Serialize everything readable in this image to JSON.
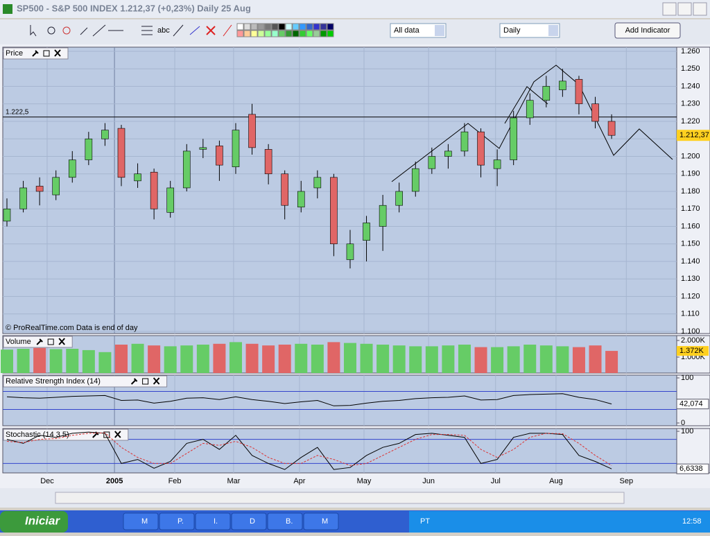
{
  "window": {
    "title": "SP500 - S&P 500 INDEX   1.212,37 (+0,23%)   Daily  25 Aug"
  },
  "toolbar": {
    "text_tool": "abc",
    "range": "All data",
    "period": "Daily",
    "add_indicator": "Add Indicator"
  },
  "footnote": "© ProRealTime.com  Data is end of day",
  "chart_data": [
    {
      "type": "candlestick",
      "title": "Price",
      "last_label": "1.212,37",
      "hline": {
        "value": 1.2225,
        "label": "1.222,5"
      },
      "xticks": [
        {
          "value": 2.46,
          "label": "Dec"
        },
        {
          "value": 6.58,
          "label": "2005"
        },
        {
          "value": 10.27,
          "label": "Feb"
        },
        {
          "value": 13.87,
          "label": "Mar"
        },
        {
          "value": 17.9,
          "label": "Apr"
        },
        {
          "value": 21.85,
          "label": "May"
        },
        {
          "value": 25.8,
          "label": "Jun"
        },
        {
          "value": 29.9,
          "label": "Jul"
        },
        {
          "value": 33.6,
          "label": "Aug"
        },
        {
          "value": 37.9,
          "label": "Sep"
        }
      ],
      "ylim": [
        1.1,
        1.26
      ],
      "yticks": [
        {
          "value": 1.1,
          "label": "1.100"
        },
        {
          "value": 1.11,
          "label": "1.110"
        },
        {
          "value": 1.12,
          "label": "1.120"
        },
        {
          "value": 1.13,
          "label": "1.130"
        },
        {
          "value": 1.14,
          "label": "1.140"
        },
        {
          "value": 1.15,
          "label": "1.150"
        },
        {
          "value": 1.16,
          "label": "1.160"
        },
        {
          "value": 1.17,
          "label": "1.170"
        },
        {
          "value": 1.18,
          "label": "1.180"
        },
        {
          "value": 1.19,
          "label": "1.190"
        },
        {
          "value": 1.2,
          "label": "1.200"
        },
        {
          "value": 1.21,
          "label": "1.210"
        },
        {
          "value": 1.22,
          "label": "1.220"
        },
        {
          "value": 1.23,
          "label": "1.230"
        },
        {
          "value": 1.24,
          "label": "1.240"
        },
        {
          "value": 1.25,
          "label": "1.250"
        },
        {
          "value": 1.26,
          "label": "1.260"
        }
      ],
      "up_color": "#66cc66",
      "down_color": "#e06666",
      "open": [
        1.163,
        1.17,
        1.183,
        1.178,
        1.188,
        1.198,
        1.21,
        1.216,
        1.186,
        1.191,
        1.168,
        1.182,
        1.204,
        1.206,
        1.194,
        1.224,
        1.204,
        1.19,
        1.171,
        1.182,
        1.188,
        1.141,
        1.152,
        1.16,
        1.172,
        1.18,
        1.193,
        1.2,
        1.203,
        1.214,
        1.193,
        1.198,
        1.222,
        1.232,
        1.238,
        1.244,
        1.23,
        1.22
      ],
      "high": [
        1.176,
        1.186,
        1.188,
        1.192,
        1.203,
        1.214,
        1.219,
        1.218,
        1.196,
        1.193,
        1.186,
        1.207,
        1.21,
        1.209,
        1.219,
        1.23,
        1.207,
        1.192,
        1.186,
        1.192,
        1.19,
        1.158,
        1.166,
        1.178,
        1.185,
        1.197,
        1.205,
        1.207,
        1.219,
        1.216,
        1.204,
        1.226,
        1.236,
        1.246,
        1.25,
        1.246,
        1.234,
        1.224
      ],
      "low": [
        1.16,
        1.168,
        1.172,
        1.175,
        1.185,
        1.195,
        1.206,
        1.183,
        1.182,
        1.164,
        1.165,
        1.18,
        1.199,
        1.186,
        1.19,
        1.201,
        1.184,
        1.164,
        1.168,
        1.176,
        1.143,
        1.136,
        1.14,
        1.146,
        1.168,
        1.177,
        1.19,
        1.193,
        1.2,
        1.188,
        1.183,
        1.195,
        1.218,
        1.228,
        1.234,
        1.224,
        1.216,
        1.21
      ],
      "close": [
        1.17,
        1.182,
        1.18,
        1.188,
        1.198,
        1.21,
        1.215,
        1.188,
        1.19,
        1.17,
        1.182,
        1.203,
        1.205,
        1.195,
        1.215,
        1.205,
        1.19,
        1.172,
        1.18,
        1.188,
        1.15,
        1.15,
        1.162,
        1.172,
        1.18,
        1.193,
        1.2,
        1.203,
        1.214,
        1.195,
        1.198,
        1.222,
        1.232,
        1.24,
        1.243,
        1.23,
        1.22,
        1.212
      ]
    },
    {
      "type": "bar",
      "title": "Volume",
      "last_label": "1.372K",
      "ylim": [
        0,
        2000
      ],
      "yticks": [
        {
          "value": 2000,
          "label": "2.000K"
        },
        {
          "value": 1000,
          "label": "1.000K"
        }
      ],
      "values": [
        1450,
        1500,
        1550,
        1480,
        1500,
        1420,
        1300,
        1750,
        1800,
        1700,
        1650,
        1700,
        1750,
        1800,
        1900,
        1800,
        1700,
        1750,
        1800,
        1750,
        1900,
        1850,
        1800,
        1750,
        1700,
        1650,
        1650,
        1700,
        1750,
        1600,
        1600,
        1650,
        1750,
        1700,
        1650,
        1600,
        1700,
        1372
      ]
    },
    {
      "type": "line",
      "title": "Relative Strength Index (14)",
      "last_label": "42,074",
      "ylim": [
        0,
        100
      ],
      "yticks": [
        100,
        0
      ],
      "levels": [
        70,
        30
      ],
      "series": [
        {
          "color": "#000000",
          "values": [
            58,
            56,
            55,
            57,
            59,
            60,
            61,
            50,
            51,
            44,
            48,
            55,
            56,
            52,
            58,
            52,
            48,
            43,
            47,
            50,
            38,
            39,
            44,
            48,
            50,
            54,
            56,
            57,
            60,
            51,
            52,
            61,
            63,
            64,
            65,
            57,
            52,
            42.074
          ]
        }
      ]
    },
    {
      "type": "line",
      "title": "Stochastic (14 3 5)",
      "last_label": "6,6338",
      "ylim": [
        0,
        100
      ],
      "yticks": [
        100
      ],
      "levels": [
        80,
        20
      ],
      "series": [
        {
          "color": "#000000",
          "values": [
            80,
            70,
            90,
            85,
            95,
            98,
            95,
            20,
            30,
            8,
            25,
            70,
            80,
            55,
            90,
            40,
            20,
            5,
            35,
            60,
            5,
            10,
            40,
            60,
            70,
            92,
            95,
            90,
            85,
            20,
            30,
            85,
            95,
            95,
            92,
            40,
            25,
            6.6338
          ]
        },
        {
          "color": "#dd3333",
          "values": [
            75,
            72,
            80,
            82,
            90,
            95,
            96,
            60,
            35,
            20,
            20,
            45,
            70,
            65,
            75,
            60,
            35,
            20,
            20,
            40,
            30,
            15,
            20,
            40,
            60,
            80,
            92,
            92,
            90,
            55,
            35,
            55,
            85,
            95,
            94,
            70,
            40,
            15
          ]
        }
      ]
    }
  ],
  "taskbar": {
    "start": "Iniciar",
    "buttons": [
      "M",
      "P.",
      "I.",
      "D",
      "B.",
      "M"
    ],
    "lang": "PT",
    "clock": "12:58"
  }
}
